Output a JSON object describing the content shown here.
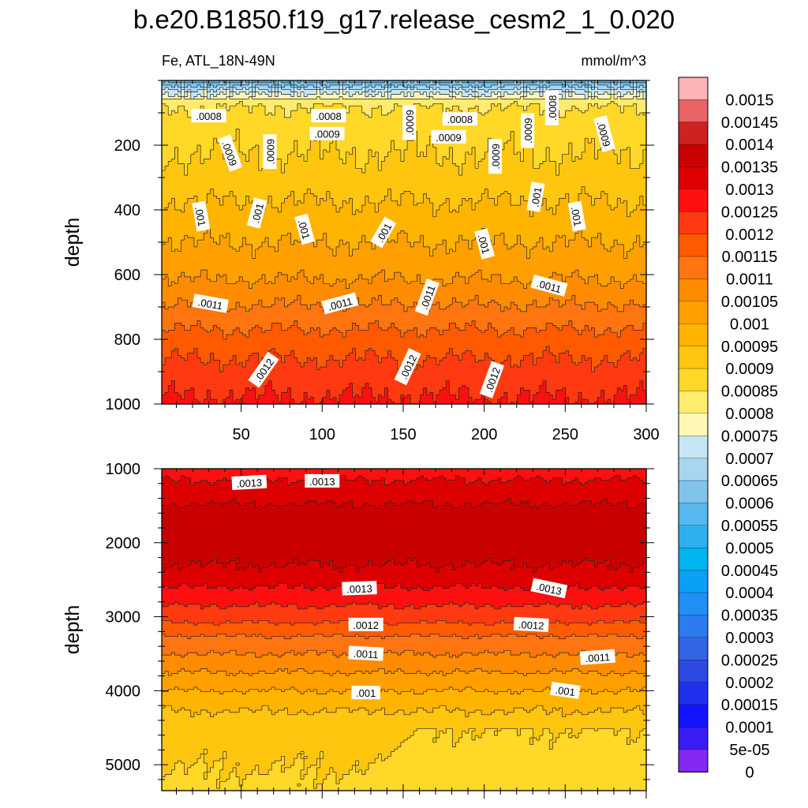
{
  "title": "b.e20.B1850.f19_g17.release_cesm2_1_0.020",
  "subtitle_left": "Fe, ATL_18N-49N",
  "subtitle_right": "mmol/m^3",
  "chart_data": [
    {
      "type": "heatmap",
      "panel": "upper",
      "variable": "Fe",
      "region": "ATL_18N-49N",
      "units": "mmol/m^3",
      "ylabel": "depth",
      "y_reversed": true,
      "xlim": [
        1,
        300
      ],
      "ylim": [
        0,
        1000
      ],
      "x_ticks": [
        50,
        100,
        150,
        200,
        250,
        300
      ],
      "y_ticks": [
        200,
        400,
        600,
        800,
        1000
      ],
      "profile": {
        "depth": [
          0,
          15,
          40,
          60,
          80,
          150,
          300,
          500,
          600,
          800,
          900,
          1000
        ],
        "value": [
          0.0006,
          0.00068,
          0.00078,
          0.00082,
          0.00085,
          0.00088,
          0.00092,
          0.001,
          0.00104,
          0.00117,
          0.00122,
          0.00126
        ]
      },
      "contour_labels": [
        {
          "text": ".0008",
          "x": 30,
          "depth": 110,
          "angle": 0
        },
        {
          "text": ".0008",
          "x": 104,
          "depth": 110,
          "angle": 0
        },
        {
          "text": ".0008",
          "x": 185,
          "depth": 120,
          "angle": 0
        },
        {
          "text": ".0008",
          "x": 242,
          "depth": 85,
          "angle": -90
        },
        {
          "text": ".0009",
          "x": 103,
          "depth": 165,
          "angle": 0
        },
        {
          "text": ".0009",
          "x": 43,
          "depth": 225,
          "angle": 70
        },
        {
          "text": ".0009",
          "x": 68,
          "depth": 220,
          "angle": -90
        },
        {
          "text": ".0009",
          "x": 154,
          "depth": 130,
          "angle": -90
        },
        {
          "text": ".0009",
          "x": 178,
          "depth": 175,
          "angle": 0
        },
        {
          "text": ".0009",
          "x": 207,
          "depth": 235,
          "angle": -90
        },
        {
          "text": ".0009",
          "x": 227,
          "depth": 155,
          "angle": -90
        },
        {
          "text": ".0009",
          "x": 274,
          "depth": 165,
          "angle": 75
        },
        {
          "text": ".001",
          "x": 25,
          "depth": 420,
          "angle": 80
        },
        {
          "text": ".001",
          "x": 60,
          "depth": 410,
          "angle": -75
        },
        {
          "text": ".001",
          "x": 89,
          "depth": 460,
          "angle": 75
        },
        {
          "text": ".001",
          "x": 138,
          "depth": 470,
          "angle": -60
        },
        {
          "text": ".001",
          "x": 200,
          "depth": 505,
          "angle": 75
        },
        {
          "text": ".001",
          "x": 232,
          "depth": 360,
          "angle": -80
        },
        {
          "text": ".001",
          "x": 257,
          "depth": 420,
          "angle": 80
        },
        {
          "text": ".0011",
          "x": 31,
          "depth": 690,
          "angle": 10
        },
        {
          "text": ".0011",
          "x": 111,
          "depth": 690,
          "angle": -15
        },
        {
          "text": ".0011",
          "x": 165,
          "depth": 670,
          "angle": -70
        },
        {
          "text": ".0011",
          "x": 240,
          "depth": 635,
          "angle": 15
        },
        {
          "text": ".0012",
          "x": 64,
          "depth": 895,
          "angle": -55
        },
        {
          "text": ".0012",
          "x": 153,
          "depth": 885,
          "angle": -65
        },
        {
          "text": ".0012",
          "x": 205,
          "depth": 925,
          "angle": -70
        }
      ]
    },
    {
      "type": "heatmap",
      "panel": "lower",
      "variable": "Fe",
      "units": "mmol/m^3",
      "ylabel": "depth",
      "y_reversed": true,
      "xlim": [
        1,
        300
      ],
      "ylim": [
        1000,
        5350
      ],
      "y_ticks": [
        1000,
        2000,
        3000,
        4000,
        5000
      ],
      "profile": {
        "depth": [
          1000,
          1300,
          1600,
          2000,
          2400,
          2700,
          3000,
          3300,
          3600,
          3900,
          4200,
          4500,
          5350
        ],
        "value": [
          0.00128,
          0.00132,
          0.00137,
          0.00138,
          0.00134,
          0.00128,
          0.00122,
          0.00114,
          0.00108,
          0.00102,
          0.00096,
          0.00092,
          0.00089
        ]
      },
      "contour_labels": [
        {
          "text": ".0013",
          "x": 55,
          "depth": 1190,
          "angle": -3
        },
        {
          "text": ".0013",
          "x": 100,
          "depth": 1170,
          "angle": 0
        },
        {
          "text": ".0013",
          "x": 123,
          "depth": 2620,
          "angle": -2
        },
        {
          "text": ".0013",
          "x": 240,
          "depth": 2620,
          "angle": 12
        },
        {
          "text": ".0012",
          "x": 127,
          "depth": 3110,
          "angle": 0
        },
        {
          "text": ".0012",
          "x": 229,
          "depth": 3110,
          "angle": 3
        },
        {
          "text": ".0011",
          "x": 127,
          "depth": 3500,
          "angle": 3
        },
        {
          "text": ".0011",
          "x": 270,
          "depth": 3550,
          "angle": -4
        },
        {
          "text": ".001",
          "x": 127,
          "depth": 4030,
          "angle": 0
        },
        {
          "text": ".001",
          "x": 250,
          "depth": 4000,
          "angle": 8
        }
      ]
    }
  ],
  "colorbar": {
    "labels": [
      "0.0015",
      "0.00145",
      "0.0014",
      "0.00135",
      "0.0013",
      "0.00125",
      "0.0012",
      "0.00115",
      "0.0011",
      "0.00105",
      "0.001",
      "0.00095",
      "0.0009",
      "0.00085",
      "0.0008",
      "0.00075",
      "0.0007",
      "0.00065",
      "0.0006",
      "0.00055",
      "0.0005",
      "0.00045",
      "0.0004",
      "0.00035",
      "0.0003",
      "0.00025",
      "0.0002",
      "0.00015",
      "0.0001",
      "5e-05",
      "0"
    ],
    "colors": [
      "#FDB3B8",
      "#E96466",
      "#CC2222",
      "#C80000",
      "#DD0000",
      "#FF1010",
      "#FF3A10",
      "#FF5A00",
      "#FF7510",
      "#FF8C00",
      "#FFA000",
      "#FFB400",
      "#FFC610",
      "#FFD828",
      "#FFEB6E",
      "#FFF8B4",
      "#C6E6F5",
      "#A8D6F0",
      "#80C4EC",
      "#56B8EC",
      "#2EB0EE",
      "#00B4F0",
      "#0AA0F5",
      "#2090F5",
      "#2B7CF0",
      "#3264E6",
      "#2C4AE0",
      "#2030EC",
      "#1414FF",
      "#3A1CF5",
      "#8228F0"
    ]
  }
}
